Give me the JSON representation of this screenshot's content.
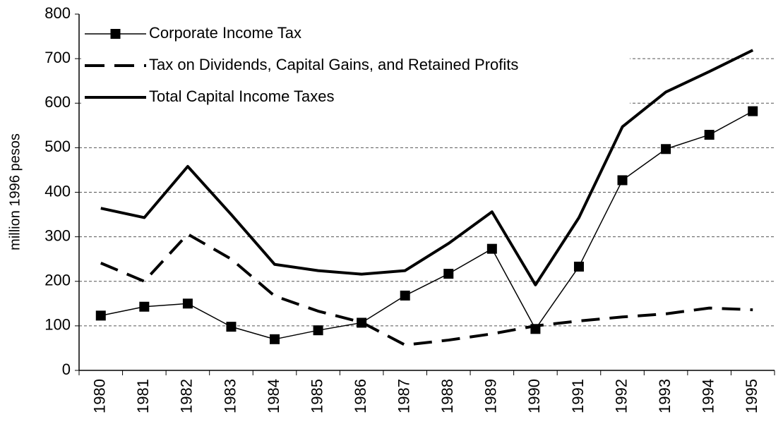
{
  "chart_data": {
    "type": "line",
    "ylabel": "million 1996 pesos",
    "categories": [
      "1980",
      "1981",
      "1982",
      "1983",
      "1984",
      "1985",
      "1986",
      "1987",
      "1988",
      "1989",
      "1990",
      "1991",
      "1992",
      "1993",
      "1994",
      "1995"
    ],
    "series": [
      {
        "name": "Corporate Income Tax",
        "color": "#000000",
        "line_width": 1.5,
        "dashed": false,
        "marker": "square",
        "values": [
          123,
          143,
          150,
          98,
          70,
          90,
          107,
          168,
          217,
          273,
          93,
          233,
          427,
          497,
          529,
          582
        ]
      },
      {
        "name": "Tax on Dividends, Capital Gains, and Retained Profits",
        "color": "#000000",
        "line_width": 4,
        "dashed": true,
        "marker": "none",
        "values": [
          241,
          200,
          306,
          250,
          167,
          133,
          108,
          57,
          68,
          82,
          100,
          111,
          120,
          127,
          140,
          136
        ]
      },
      {
        "name": "Total Capital Income Taxes",
        "color": "#000000",
        "line_width": 4,
        "dashed": false,
        "marker": "none",
        "values": [
          364,
          343,
          458,
          350,
          238,
          224,
          216,
          224,
          285,
          356,
          192,
          343,
          547,
          625,
          671,
          719
        ]
      }
    ],
    "ylim": [
      0,
      800
    ],
    "yticks": [
      0,
      100,
      200,
      300,
      400,
      500,
      600,
      700,
      800
    ],
    "grid": true,
    "legend": "upper left"
  }
}
